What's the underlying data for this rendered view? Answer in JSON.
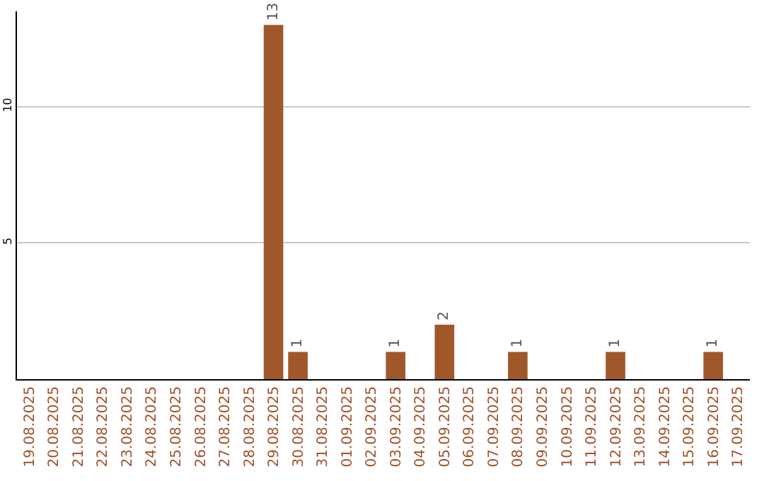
{
  "chart_data": {
    "type": "bar",
    "categories": [
      "19.08.2025",
      "20.08.2025",
      "21.08.2025",
      "22.08.2025",
      "23.08.2025",
      "24.08.2025",
      "25.08.2025",
      "26.08.2025",
      "27.08.2025",
      "28.08.2025",
      "29.08.2025",
      "30.08.2025",
      "31.08.2025",
      "01.09.2025",
      "02.09.2025",
      "03.09.2025",
      "04.09.2025",
      "05.09.2025",
      "06.09.2025",
      "07.09.2025",
      "08.09.2025",
      "09.09.2025",
      "10.09.2025",
      "11.09.2025",
      "12.09.2025",
      "13.09.2025",
      "14.09.2025",
      "15.09.2025",
      "16.09.2025",
      "17.09.2025"
    ],
    "values": [
      0,
      0,
      0,
      0,
      0,
      0,
      0,
      0,
      0,
      0,
      13,
      1,
      0,
      0,
      0,
      1,
      0,
      2,
      0,
      0,
      1,
      0,
      0,
      0,
      1,
      0,
      0,
      0,
      1,
      0
    ],
    "value_labels": [
      null,
      null,
      null,
      null,
      null,
      null,
      null,
      null,
      null,
      null,
      "13",
      "1",
      null,
      null,
      null,
      "1",
      null,
      "2",
      null,
      null,
      "1",
      null,
      null,
      null,
      "1",
      null,
      null,
      null,
      "1",
      null
    ],
    "color": "#a0582a",
    "ylim": [
      0,
      13.5
    ],
    "yticks": [
      5,
      10
    ],
    "grid": "y",
    "legend": false
  }
}
